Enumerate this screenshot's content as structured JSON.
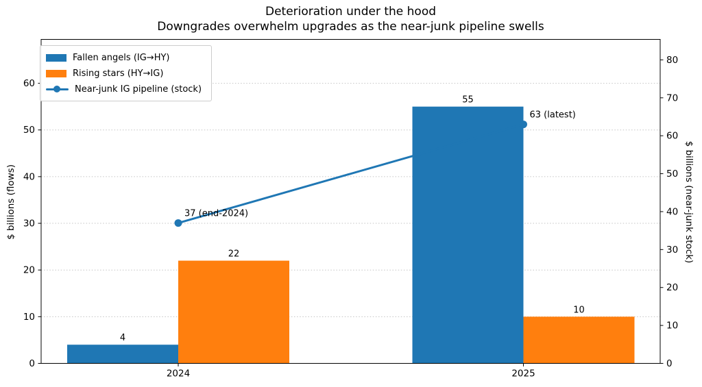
{
  "chart_data": {
    "type": "bar+line",
    "title": "Deterioration under the hood",
    "subtitle": "Downgrades overwhelm upgrades as the near-junk pipeline swells",
    "categories": [
      "2024",
      "2025"
    ],
    "bar_series": [
      {
        "name": "Fallen angels (IG→HY)",
        "color": "#1f77b4",
        "values": [
          4,
          55
        ]
      },
      {
        "name": "Rising stars (HY→IG)",
        "color": "#ff7f0e",
        "values": [
          22,
          10
        ]
      }
    ],
    "line_series": {
      "name": "Near-junk IG pipeline (stock)",
      "color": "#1f77b4",
      "axis": "right",
      "values": [
        37,
        63
      ],
      "annotations": [
        "37 (end-2024)",
        "63 (latest)"
      ]
    },
    "left_axis": {
      "label": "$ billions (flows)",
      "ticks": [
        0,
        10,
        20,
        30,
        40,
        50,
        60
      ],
      "min": 0,
      "max": 69.4
    },
    "right_axis": {
      "label": "$ billions (near-junk stock)",
      "ticks": [
        0,
        10,
        20,
        30,
        40,
        50,
        60,
        70,
        80
      ],
      "min": 0,
      "max": 85.4
    },
    "grid": {
      "axis": "left-y",
      "style": "dotted",
      "color": "#c3c3c3"
    },
    "legend_position": "upper-left",
    "text_color": "#000000"
  }
}
